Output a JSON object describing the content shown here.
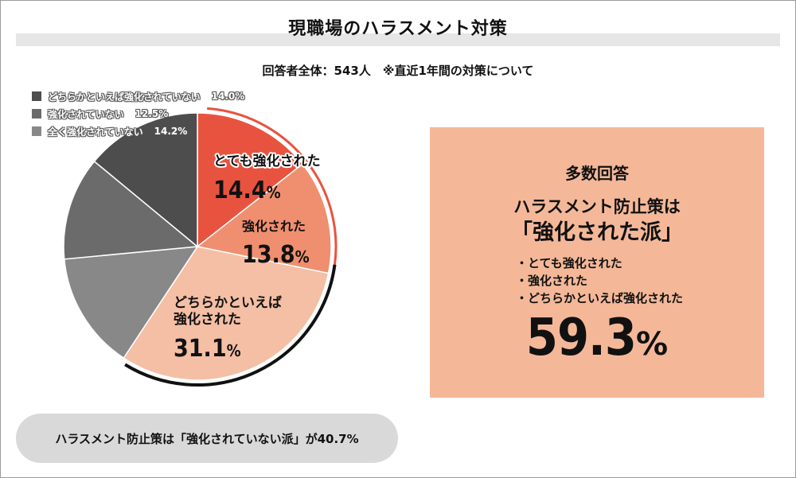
{
  "title": "現職場のハラスメント対策",
  "subtitle": "回答者全体：543人　※直近1年間の対策について",
  "chart_data": {
    "type": "pie",
    "title": "現職場のハラスメント対策",
    "unit": "%",
    "slices": [
      {
        "label": "とても強化された",
        "value": 14.4,
        "value_label": "14.4",
        "color": "#e8533f"
      },
      {
        "label": "強化された",
        "value": 13.8,
        "value_label": "13.8",
        "color": "#ef8f70"
      },
      {
        "label": "どちらかといえば強化された",
        "label_lines": [
          "どちらかといえば",
          "強化された"
        ],
        "value": 31.1,
        "value_label": "31.1",
        "color": "#f4bfa5"
      },
      {
        "label": "全く強化されていない",
        "value": 14.2,
        "value_label": "14.2%",
        "color": "#888888"
      },
      {
        "label": "強化されていない",
        "value": 12.5,
        "value_label": "12.5%",
        "color": "#6b6b6b"
      },
      {
        "label": "どちらかといえば強化されていない",
        "value": 14.0,
        "value_label": "14.0%",
        "color": "#4d4d4d"
      }
    ],
    "legend": [
      {
        "label": "どちらかといえば強化されていない",
        "value_label": "14.0%",
        "color": "#4d4d4d"
      },
      {
        "label": "強化されていない",
        "value_label": "12.5%",
        "color": "#6b6b6b"
      },
      {
        "label": "全く強化されていない",
        "value_label": "14.2%",
        "color": "#888888"
      }
    ],
    "legend_position": "top-left",
    "percent_sign": "%"
  },
  "callout": {
    "heading": "多数回答",
    "line1": "ハラスメント防止策は",
    "line2": "「強化された派」",
    "items": [
      "・とても強化された",
      "・強化された",
      "・どちらかといえば強化された"
    ],
    "total_value": "59.3",
    "total_unit": "%"
  },
  "note": "ハラスメント防止策は「強化されていない派」が40.7%"
}
